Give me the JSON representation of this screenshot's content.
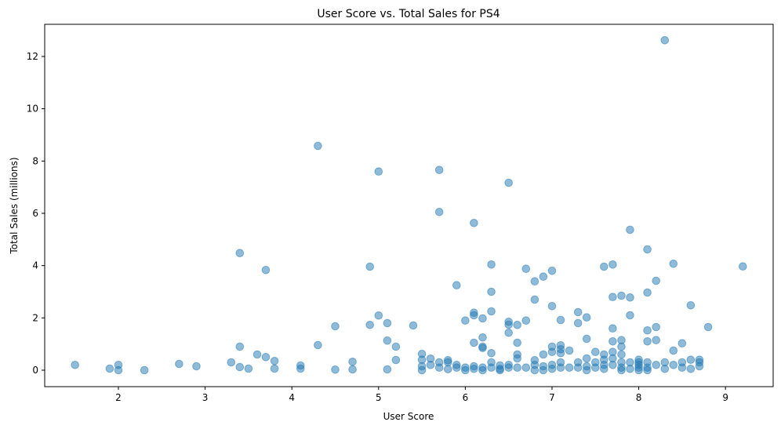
{
  "chart_data": {
    "type": "scatter",
    "title": "User Score vs. Total Sales for PS4",
    "xlabel": "User Score",
    "ylabel": "Total Sales (millions)",
    "xlim": [
      1.15,
      9.55
    ],
    "ylim": [
      -0.63,
      13.23
    ],
    "xticks": [
      2,
      3,
      4,
      5,
      6,
      7,
      8,
      9
    ],
    "yticks": [
      0,
      2,
      4,
      6,
      8,
      10,
      12
    ],
    "grid": false,
    "marker_color": "#1f77b4",
    "marker_alpha": 0.5,
    "points": [
      [
        1.5,
        0.2
      ],
      [
        1.9,
        0.06
      ],
      [
        2.0,
        0.2
      ],
      [
        2.0,
        0.0
      ],
      [
        2.3,
        0.0
      ],
      [
        2.7,
        0.24
      ],
      [
        2.9,
        0.15
      ],
      [
        3.3,
        0.3
      ],
      [
        3.4,
        0.9
      ],
      [
        3.4,
        4.48
      ],
      [
        3.4,
        0.12
      ],
      [
        3.5,
        0.06
      ],
      [
        3.6,
        0.6
      ],
      [
        3.7,
        3.83
      ],
      [
        3.7,
        0.5
      ],
      [
        3.8,
        0.35
      ],
      [
        3.8,
        0.06
      ],
      [
        4.1,
        0.18
      ],
      [
        4.1,
        0.06
      ],
      [
        4.3,
        8.58
      ],
      [
        4.3,
        0.96
      ],
      [
        4.5,
        1.68
      ],
      [
        4.5,
        0.02
      ],
      [
        4.7,
        0.32
      ],
      [
        4.7,
        0.03
      ],
      [
        4.9,
        3.96
      ],
      [
        4.9,
        1.73
      ],
      [
        5.0,
        7.6
      ],
      [
        5.0,
        2.09
      ],
      [
        5.1,
        1.8
      ],
      [
        5.1,
        1.13
      ],
      [
        5.1,
        0.03
      ],
      [
        5.2,
        0.9
      ],
      [
        5.2,
        0.39
      ],
      [
        5.4,
        1.71
      ],
      [
        5.5,
        0.62
      ],
      [
        5.5,
        0.4
      ],
      [
        5.5,
        0.15
      ],
      [
        5.5,
        0.0
      ],
      [
        5.6,
        0.44
      ],
      [
        5.6,
        0.2
      ],
      [
        5.7,
        7.66
      ],
      [
        5.7,
        6.05
      ],
      [
        5.7,
        0.3
      ],
      [
        5.7,
        0.1
      ],
      [
        5.8,
        0.38
      ],
      [
        5.8,
        0.3
      ],
      [
        5.8,
        0.04
      ],
      [
        5.9,
        3.25
      ],
      [
        5.9,
        0.2
      ],
      [
        5.9,
        0.1
      ],
      [
        6.0,
        1.9
      ],
      [
        6.0,
        0.1
      ],
      [
        6.0,
        0.0
      ],
      [
        6.1,
        5.63
      ],
      [
        6.1,
        2.2
      ],
      [
        6.1,
        2.1
      ],
      [
        6.1,
        1.05
      ],
      [
        6.1,
        0.15
      ],
      [
        6.1,
        0.05
      ],
      [
        6.2,
        1.98
      ],
      [
        6.2,
        1.25
      ],
      [
        6.2,
        0.9
      ],
      [
        6.2,
        0.85
      ],
      [
        6.2,
        0.1
      ],
      [
        6.2,
        0.0
      ],
      [
        6.3,
        4.04
      ],
      [
        6.3,
        3.0
      ],
      [
        6.3,
        2.25
      ],
      [
        6.3,
        0.65
      ],
      [
        6.3,
        0.3
      ],
      [
        6.3,
        0.1
      ],
      [
        6.4,
        0.18
      ],
      [
        6.4,
        0.05
      ],
      [
        6.4,
        0.0
      ],
      [
        6.5,
        7.17
      ],
      [
        6.5,
        1.85
      ],
      [
        6.5,
        1.74
      ],
      [
        6.5,
        1.43
      ],
      [
        6.5,
        0.2
      ],
      [
        6.5,
        0.1
      ],
      [
        6.6,
        1.73
      ],
      [
        6.6,
        1.05
      ],
      [
        6.6,
        0.6
      ],
      [
        6.6,
        0.45
      ],
      [
        6.6,
        0.1
      ],
      [
        6.7,
        3.88
      ],
      [
        6.7,
        1.9
      ],
      [
        6.7,
        0.1
      ],
      [
        6.8,
        3.4
      ],
      [
        6.8,
        2.7
      ],
      [
        6.8,
        0.38
      ],
      [
        6.8,
        0.2
      ],
      [
        6.8,
        0.0
      ],
      [
        6.9,
        3.58
      ],
      [
        6.9,
        0.6
      ],
      [
        6.9,
        0.15
      ],
      [
        6.9,
        0.0
      ],
      [
        7.0,
        3.8
      ],
      [
        7.0,
        2.45
      ],
      [
        7.0,
        0.9
      ],
      [
        7.0,
        0.7
      ],
      [
        7.0,
        0.2
      ],
      [
        7.0,
        0.05
      ],
      [
        7.1,
        1.92
      ],
      [
        7.1,
        0.95
      ],
      [
        7.1,
        0.8
      ],
      [
        7.1,
        0.65
      ],
      [
        7.1,
        0.3
      ],
      [
        7.1,
        0.1
      ],
      [
        7.2,
        0.75
      ],
      [
        7.2,
        0.1
      ],
      [
        7.3,
        2.22
      ],
      [
        7.3,
        1.8
      ],
      [
        7.3,
        0.3
      ],
      [
        7.3,
        0.1
      ],
      [
        7.4,
        2.02
      ],
      [
        7.4,
        1.2
      ],
      [
        7.4,
        0.45
      ],
      [
        7.4,
        0.15
      ],
      [
        7.4,
        0.0
      ],
      [
        7.5,
        0.7
      ],
      [
        7.5,
        0.3
      ],
      [
        7.5,
        0.1
      ],
      [
        7.6,
        3.96
      ],
      [
        7.6,
        0.6
      ],
      [
        7.6,
        0.4
      ],
      [
        7.6,
        0.2
      ],
      [
        7.6,
        0.05
      ],
      [
        7.7,
        4.04
      ],
      [
        7.7,
        2.8
      ],
      [
        7.7,
        1.6
      ],
      [
        7.7,
        1.1
      ],
      [
        7.7,
        0.7
      ],
      [
        7.7,
        0.45
      ],
      [
        7.7,
        0.2
      ],
      [
        7.8,
        2.85
      ],
      [
        7.8,
        1.15
      ],
      [
        7.8,
        0.9
      ],
      [
        7.8,
        0.6
      ],
      [
        7.8,
        0.3
      ],
      [
        7.8,
        0.1
      ],
      [
        7.8,
        0.0
      ],
      [
        7.9,
        5.37
      ],
      [
        7.9,
        2.78
      ],
      [
        7.9,
        2.1
      ],
      [
        7.9,
        0.3
      ],
      [
        7.9,
        0.05
      ],
      [
        8.0,
        0.4
      ],
      [
        8.0,
        0.3
      ],
      [
        8.0,
        0.2
      ],
      [
        8.0,
        0.1
      ],
      [
        8.0,
        0.0
      ],
      [
        8.1,
        4.62
      ],
      [
        8.1,
        2.97
      ],
      [
        8.1,
        1.52
      ],
      [
        8.1,
        1.1
      ],
      [
        8.1,
        0.3
      ],
      [
        8.1,
        0.1
      ],
      [
        8.1,
        0.0
      ],
      [
        8.2,
        3.42
      ],
      [
        8.2,
        1.65
      ],
      [
        8.2,
        1.15
      ],
      [
        8.2,
        0.2
      ],
      [
        8.3,
        12.62
      ],
      [
        8.3,
        0.3
      ],
      [
        8.3,
        0.05
      ],
      [
        8.4,
        4.07
      ],
      [
        8.4,
        0.75
      ],
      [
        8.4,
        0.2
      ],
      [
        8.5,
        1.03
      ],
      [
        8.5,
        0.3
      ],
      [
        8.5,
        0.1
      ],
      [
        8.6,
        2.48
      ],
      [
        8.6,
        0.4
      ],
      [
        8.6,
        0.05
      ],
      [
        8.7,
        0.4
      ],
      [
        8.7,
        0.3
      ],
      [
        8.7,
        0.15
      ],
      [
        8.8,
        1.65
      ],
      [
        9.2,
        3.97
      ]
    ]
  }
}
